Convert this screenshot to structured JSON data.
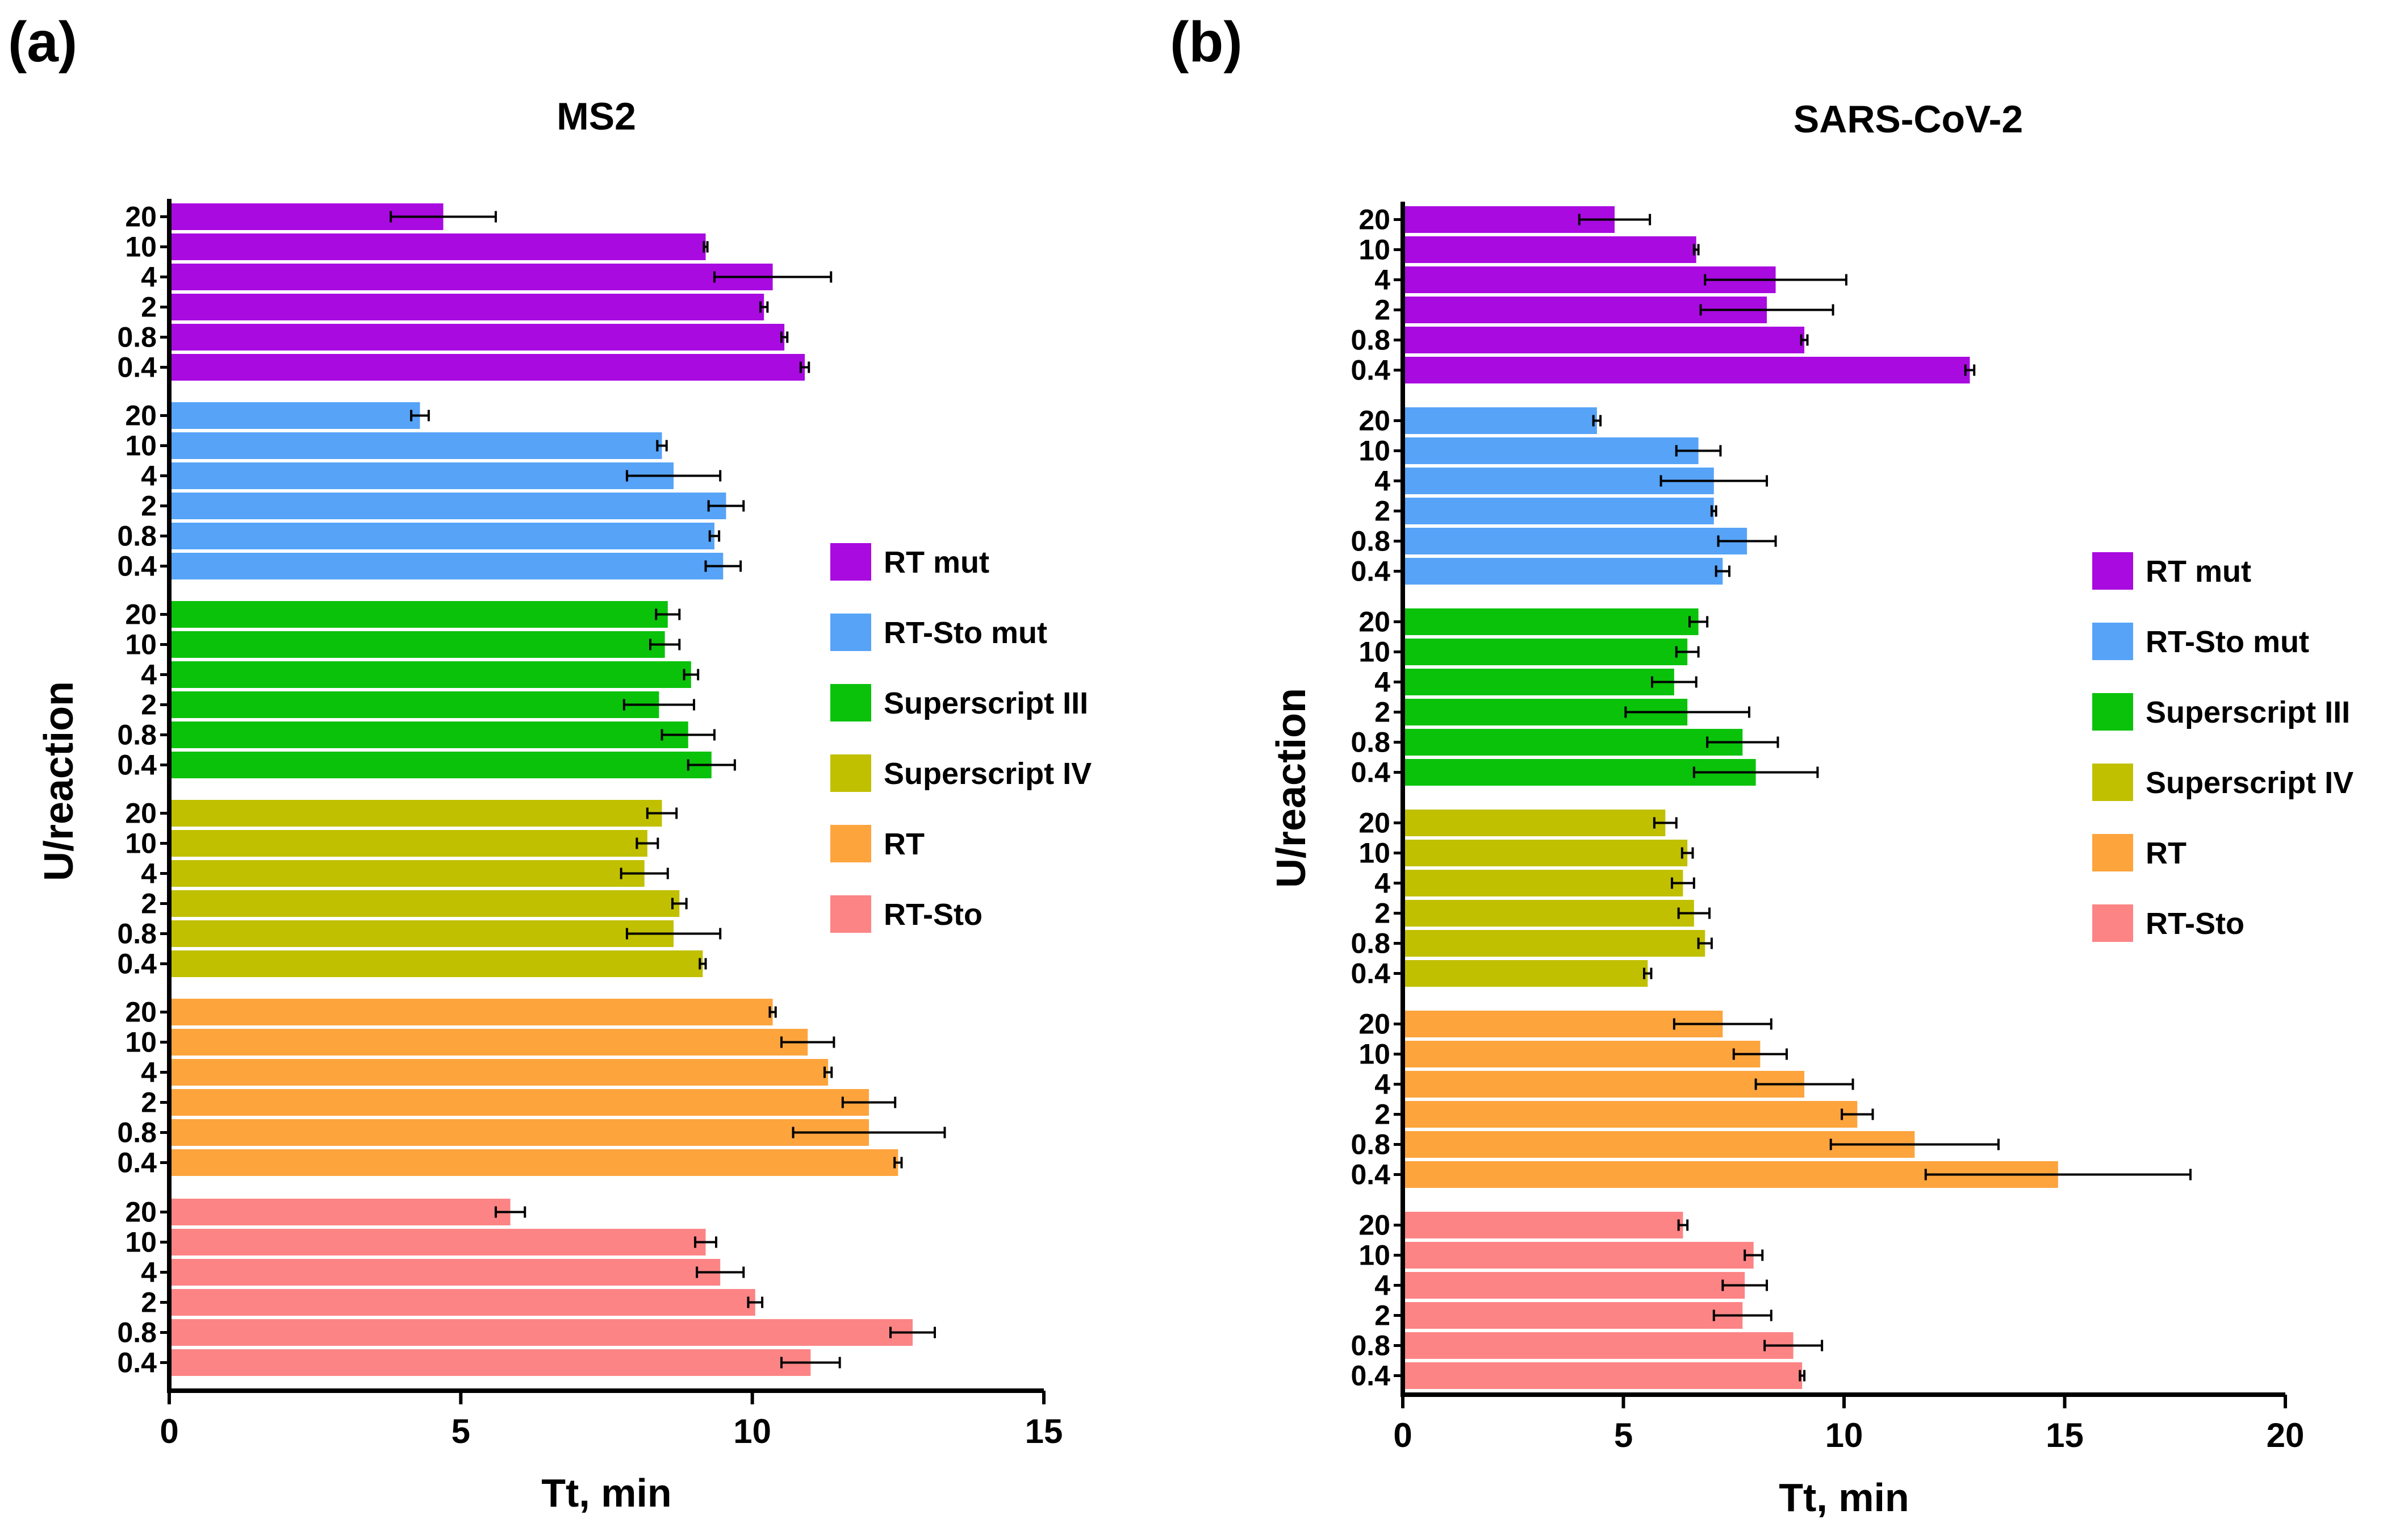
{
  "colors": {
    "RT mut": "#a90ae0",
    "RT-Sto mut": "#56a3f8",
    "Superscript III": "#0ac20a",
    "Superscript IV": "#c0c000",
    "RT": "#fda43d",
    "RT-Sto": "#fc8485"
  },
  "chart_data": [
    {
      "panel_label": "(a)",
      "type": "bar",
      "orientation": "horizontal",
      "title": "MS2",
      "xlabel": "Tt, min",
      "ylabel": "U/reaction",
      "xlim": [
        0,
        15
      ],
      "xticks": [
        0,
        5,
        10,
        15
      ],
      "categories": [
        "20",
        "10",
        "4",
        "2",
        "0.8",
        "0.4"
      ],
      "legend": [
        "RT mut",
        "RT-Sto mut",
        "Superscript III",
        "Superscript IV",
        "RT",
        "RT-Sto"
      ],
      "series": [
        {
          "name": "RT mut",
          "values": [
            4.7,
            9.2,
            10.35,
            10.2,
            10.55,
            10.9
          ],
          "errors": [
            0.9,
            0.03,
            1.0,
            0.06,
            0.05,
            0.07
          ]
        },
        {
          "name": "RT-Sto mut",
          "values": [
            4.3,
            8.45,
            8.65,
            9.55,
            9.35,
            9.5
          ],
          "errors": [
            0.15,
            0.08,
            0.8,
            0.3,
            0.08,
            0.3
          ]
        },
        {
          "name": "Superscript III",
          "values": [
            8.55,
            8.5,
            8.95,
            8.4,
            8.9,
            9.3
          ],
          "errors": [
            0.2,
            0.25,
            0.12,
            0.6,
            0.45,
            0.4
          ]
        },
        {
          "name": "Superscript IV",
          "values": [
            8.45,
            8.2,
            8.15,
            8.75,
            8.65,
            9.15
          ],
          "errors": [
            0.25,
            0.18,
            0.4,
            0.12,
            0.8,
            0.05
          ]
        },
        {
          "name": "RT",
          "values": [
            10.35,
            10.95,
            11.3,
            12.0,
            12.0,
            12.5
          ],
          "errors": [
            0.05,
            0.45,
            0.06,
            0.45,
            1.3,
            0.06
          ]
        },
        {
          "name": "RT-Sto",
          "values": [
            5.85,
            9.2,
            9.45,
            10.05,
            12.75,
            11.0
          ],
          "errors": [
            0.25,
            0.18,
            0.4,
            0.12,
            0.38,
            0.5
          ]
        }
      ]
    },
    {
      "panel_label": "(b)",
      "type": "bar",
      "orientation": "horizontal",
      "title": "SARS-CoV-2",
      "xlabel": "Tt, min",
      "ylabel": "U/reaction",
      "xlim": [
        0,
        20
      ],
      "xticks": [
        0,
        5,
        10,
        15,
        20
      ],
      "categories": [
        "20",
        "10",
        "4",
        "2",
        "0.8",
        "0.4"
      ],
      "legend": [
        "RT mut",
        "RT-Sto mut",
        "Superscript III",
        "Superscript IV",
        "RT",
        "RT-Sto"
      ],
      "series": [
        {
          "name": "RT mut",
          "values": [
            4.8,
            6.65,
            8.45,
            8.25,
            9.1,
            12.85
          ],
          "errors": [
            0.8,
            0.05,
            1.6,
            1.5,
            0.07,
            0.1
          ]
        },
        {
          "name": "RT-Sto mut",
          "values": [
            4.4,
            6.7,
            7.05,
            7.05,
            7.8,
            7.25
          ],
          "errors": [
            0.08,
            0.5,
            1.2,
            0.05,
            0.65,
            0.15
          ]
        },
        {
          "name": "Superscript III",
          "values": [
            6.7,
            6.45,
            6.15,
            6.45,
            7.7,
            8.0
          ],
          "errors": [
            0.2,
            0.25,
            0.5,
            1.4,
            0.8,
            1.4
          ]
        },
        {
          "name": "Superscript IV",
          "values": [
            5.95,
            6.45,
            6.35,
            6.6,
            6.85,
            5.55
          ],
          "errors": [
            0.25,
            0.12,
            0.25,
            0.35,
            0.15,
            0.08
          ]
        },
        {
          "name": "RT",
          "values": [
            7.25,
            8.1,
            9.1,
            10.3,
            11.6,
            14.85
          ],
          "errors": [
            1.1,
            0.6,
            1.1,
            0.35,
            1.9,
            3.0
          ]
        },
        {
          "name": "RT-Sto",
          "values": [
            6.35,
            7.95,
            7.75,
            7.7,
            8.85,
            9.05
          ],
          "errors": [
            0.1,
            0.2,
            0.5,
            0.65,
            0.65,
            0.05
          ]
        }
      ]
    }
  ]
}
